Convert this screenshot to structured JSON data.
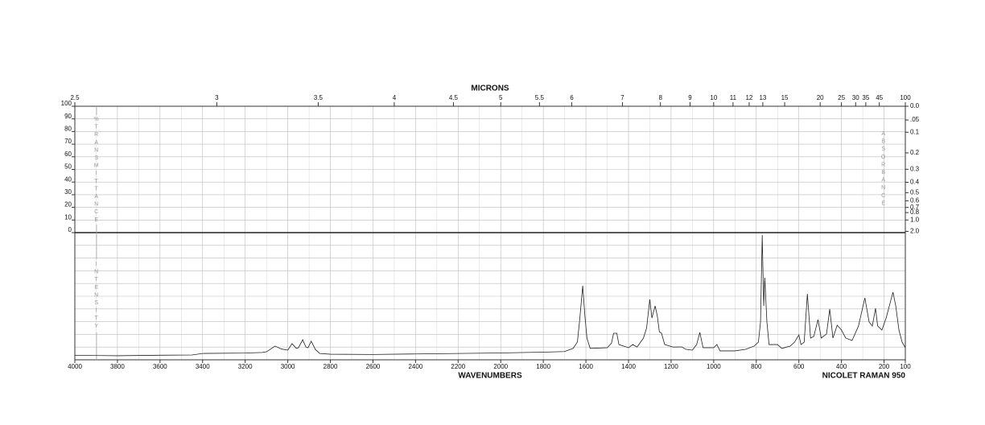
{
  "chart_data": {
    "type": "line",
    "x_label": "WAVENUMBERS",
    "x2_label": "MICRONS",
    "y_label": "%TRANSMITTANCE",
    "y2_label": "ABSORBANCE",
    "intensity_label": "INTENSITY",
    "instrument": "NICOLET RAMAN 950",
    "xlim": [
      4000,
      100
    ],
    "xticks": [
      4000,
      3800,
      3600,
      3400,
      3200,
      3000,
      2800,
      2600,
      2400,
      2200,
      2000,
      1800,
      1600,
      1400,
      1200,
      1000,
      800,
      600,
      400,
      200,
      100
    ],
    "x2ticks": [
      2.5,
      3,
      3.5,
      4,
      4.5,
      5,
      5.5,
      6,
      7,
      8,
      9,
      10,
      11,
      12,
      13,
      15,
      20,
      25,
      30,
      35,
      45,
      100
    ],
    "ylim": [
      0,
      100
    ],
    "yticks": [
      0,
      10,
      20,
      30,
      40,
      50,
      60,
      70,
      80,
      90,
      100
    ],
    "y2ticks": [
      {
        "value": 0,
        "label": "0.0"
      },
      {
        "value": 0.05,
        "label": ".05"
      },
      0.1,
      0.2,
      0.3,
      0.4,
      0.5,
      0.6,
      0.7,
      0.8,
      {
        "value": 1,
        "label": "1.0"
      },
      {
        "value": 2,
        "label": "2.0"
      }
    ],
    "intensity_lim": [
      0,
      100
    ],
    "grid": true,
    "series": [
      {
        "color": "#222",
        "x": [
          4000,
          3800,
          3600,
          3450,
          3400,
          3200,
          3120,
          3100,
          3080,
          3060,
          3030,
          3000,
          2980,
          2960,
          2950,
          2930,
          2915,
          2905,
          2890,
          2870,
          2850,
          2800,
          2600,
          2400,
          2200,
          2000,
          1800,
          1700,
          1660,
          1640,
          1630,
          1615,
          1605,
          1595,
          1580,
          1500,
          1480,
          1470,
          1455,
          1445,
          1400,
          1380,
          1360,
          1330,
          1315,
          1300,
          1290,
          1275,
          1265,
          1255,
          1245,
          1230,
          1190,
          1150,
          1130,
          1100,
          1080,
          1065,
          1050,
          1000,
          985,
          970,
          900,
          850,
          810,
          790,
          780,
          772,
          765,
          760,
          750,
          740,
          700,
          680,
          640,
          620,
          600,
          590,
          575,
          560,
          545,
          530,
          510,
          495,
          470,
          455,
          440,
          420,
          400,
          380,
          350,
          320,
          290,
          270,
          255,
          240,
          230,
          210,
          190,
          170,
          158,
          145,
          130,
          115,
          100
        ],
        "values": [
          3.5,
          3.2,
          3.6,
          3.8,
          5,
          5.3,
          5.8,
          6.3,
          8.5,
          10.8,
          8.5,
          7.6,
          12.7,
          9,
          9.5,
          15.8,
          10,
          9.5,
          14.6,
          8,
          5,
          4.4,
          4.2,
          4.6,
          5,
          5.4,
          6,
          6.5,
          9,
          14,
          30,
          58.2,
          35,
          17,
          9,
          9.5,
          13,
          20.9,
          20.9,
          12,
          9.5,
          12,
          10,
          17,
          25,
          47.5,
          32.9,
          42.4,
          34.8,
          22,
          20.9,
          12,
          10,
          10.1,
          8.2,
          7.6,
          12,
          21.5,
          9.5,
          9.5,
          12,
          7,
          7,
          8.2,
          10.8,
          13.9,
          29.7,
          98.1,
          42.4,
          64.6,
          29.7,
          12,
          12,
          8.9,
          10.8,
          13.9,
          19.6,
          12,
          13.9,
          51.9,
          17.1,
          18.4,
          31.6,
          17.1,
          20.3,
          39.9,
          17.1,
          27.2,
          23.4,
          17.1,
          15.2,
          26.6,
          48.7,
          29.7,
          26.6,
          40.5,
          26.6,
          23.4,
          32.9,
          45.6,
          53.2,
          42.4,
          23.4,
          13.9,
          9.5
        ]
      }
    ]
  }
}
